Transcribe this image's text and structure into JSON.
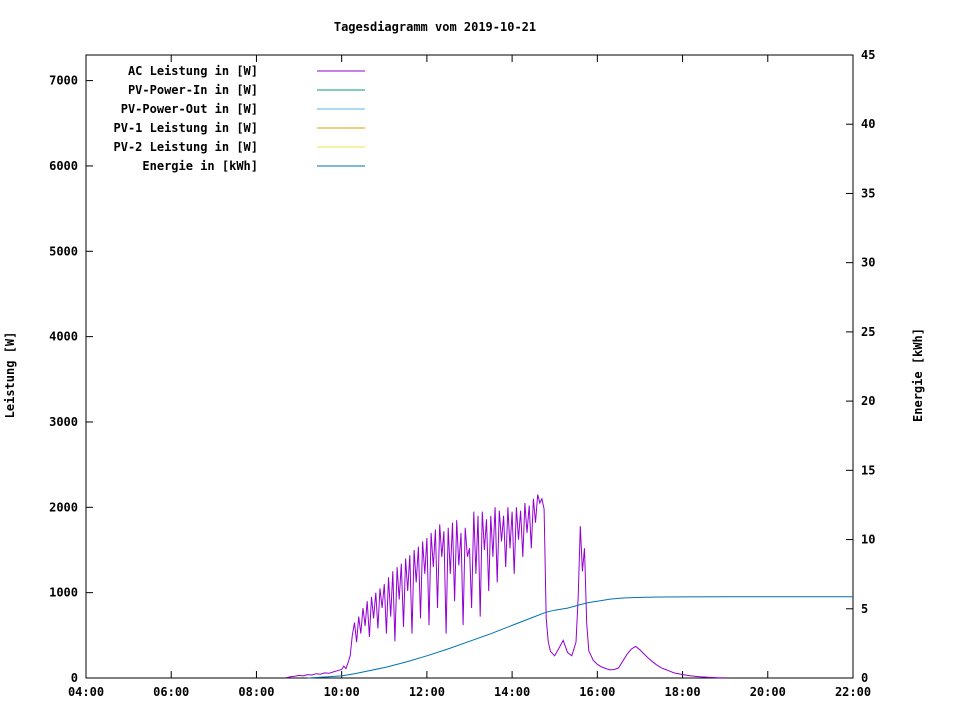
{
  "chart_data": {
    "type": "line",
    "title": "Tagesdiagramm vom 2019-10-21",
    "x_axis": {
      "label": "",
      "range_hours": [
        4,
        22
      ],
      "tick_hours": [
        4,
        6,
        8,
        10,
        12,
        14,
        16,
        18,
        20,
        22
      ],
      "tick_labels": [
        "04:00",
        "06:00",
        "08:00",
        "10:00",
        "12:00",
        "14:00",
        "16:00",
        "18:00",
        "20:00",
        "22:00"
      ]
    },
    "y_left": {
      "label": "Leistung [W]",
      "range": [
        0,
        7300
      ],
      "ticks": [
        0,
        1000,
        2000,
        3000,
        4000,
        5000,
        6000,
        7000
      ]
    },
    "y_right": {
      "label": "Energie [kWh]",
      "range": [
        0,
        45
      ],
      "ticks": [
        0,
        5,
        10,
        15,
        20,
        25,
        30,
        35,
        40,
        45
      ]
    },
    "legend": [
      {
        "label": "AC Leistung in [W]",
        "color": "#9400d3"
      },
      {
        "label": "PV-Power-In in [W]",
        "color": "#009e73"
      },
      {
        "label": "PV-Power-Out in [W]",
        "color": "#56b4e9"
      },
      {
        "label": "PV-1 Leistung in [W]",
        "color": "#e69f00"
      },
      {
        "label": "PV-2 Leistung in [W]",
        "color": "#f0e442"
      },
      {
        "label": "Energie in [kWh]",
        "color": "#0072b2"
      }
    ],
    "series": [
      {
        "name": "AC Leistung in [W]",
        "color": "#9400d3",
        "axis": "left",
        "points": [
          [
            8.7,
            5
          ],
          [
            8.8,
            15
          ],
          [
            8.9,
            20
          ],
          [
            9.0,
            30
          ],
          [
            9.1,
            25
          ],
          [
            9.2,
            40
          ],
          [
            9.3,
            35
          ],
          [
            9.4,
            50
          ],
          [
            9.5,
            45
          ],
          [
            9.6,
            60
          ],
          [
            9.7,
            55
          ],
          [
            9.8,
            70
          ],
          [
            9.9,
            85
          ],
          [
            10.0,
            100
          ],
          [
            10.05,
            140
          ],
          [
            10.1,
            110
          ],
          [
            10.15,
            180
          ],
          [
            10.2,
            260
          ],
          [
            10.25,
            500
          ],
          [
            10.3,
            650
          ],
          [
            10.35,
            420
          ],
          [
            10.4,
            720
          ],
          [
            10.45,
            520
          ],
          [
            10.5,
            820
          ],
          [
            10.55,
            610
          ],
          [
            10.6,
            900
          ],
          [
            10.65,
            480
          ],
          [
            10.7,
            950
          ],
          [
            10.75,
            700
          ],
          [
            10.8,
            1000
          ],
          [
            10.85,
            580
          ],
          [
            10.9,
            1050
          ],
          [
            10.95,
            820
          ],
          [
            11.0,
            1100
          ],
          [
            11.05,
            520
          ],
          [
            11.1,
            1180
          ],
          [
            11.15,
            720
          ],
          [
            11.2,
            1250
          ],
          [
            11.25,
            430
          ],
          [
            11.3,
            1300
          ],
          [
            11.35,
            920
          ],
          [
            11.4,
            1340
          ],
          [
            11.45,
            600
          ],
          [
            11.5,
            1400
          ],
          [
            11.55,
            1020
          ],
          [
            11.6,
            1440
          ],
          [
            11.65,
            520
          ],
          [
            11.7,
            1500
          ],
          [
            11.75,
            1120
          ],
          [
            11.8,
            1540
          ],
          [
            11.85,
            700
          ],
          [
            11.9,
            1600
          ],
          [
            11.95,
            1220
          ],
          [
            12.0,
            1640
          ],
          [
            12.05,
            620
          ],
          [
            12.1,
            1700
          ],
          [
            12.15,
            1300
          ],
          [
            12.2,
            1740
          ],
          [
            12.25,
            820
          ],
          [
            12.3,
            1800
          ],
          [
            12.35,
            1420
          ],
          [
            12.4,
            1720
          ],
          [
            12.45,
            520
          ],
          [
            12.5,
            1760
          ],
          [
            12.55,
            1220
          ],
          [
            12.6,
            1820
          ],
          [
            12.65,
            900
          ],
          [
            12.7,
            1850
          ],
          [
            12.75,
            1320
          ],
          [
            12.8,
            1700
          ],
          [
            12.85,
            620
          ],
          [
            12.9,
            1760
          ],
          [
            12.95,
            1420
          ],
          [
            13.0,
            1520
          ],
          [
            13.05,
            820
          ],
          [
            13.1,
            1950
          ],
          [
            13.15,
            1220
          ],
          [
            13.2,
            1900
          ],
          [
            13.25,
            720
          ],
          [
            13.3,
            1950
          ],
          [
            13.35,
            1500
          ],
          [
            13.4,
            1860
          ],
          [
            13.45,
            1020
          ],
          [
            13.5,
            1900
          ],
          [
            13.55,
            1420
          ],
          [
            13.6,
            2000
          ],
          [
            13.65,
            1120
          ],
          [
            13.7,
            1960
          ],
          [
            13.75,
            1600
          ],
          [
            13.8,
            1900
          ],
          [
            13.85,
            1300
          ],
          [
            13.9,
            2000
          ],
          [
            13.95,
            1520
          ],
          [
            14.0,
            1950
          ],
          [
            14.05,
            1220
          ],
          [
            14.1,
            2000
          ],
          [
            14.15,
            1620
          ],
          [
            14.2,
            1960
          ],
          [
            14.25,
            1420
          ],
          [
            14.3,
            2050
          ],
          [
            14.35,
            1700
          ],
          [
            14.4,
            2020
          ],
          [
            14.45,
            1520
          ],
          [
            14.5,
            2100
          ],
          [
            14.55,
            1820
          ],
          [
            14.6,
            2150
          ],
          [
            14.65,
            2050
          ],
          [
            14.7,
            2100
          ],
          [
            14.75,
            1980
          ],
          [
            14.8,
            700
          ],
          [
            14.85,
            420
          ],
          [
            14.9,
            310
          ],
          [
            15.0,
            260
          ],
          [
            15.1,
            350
          ],
          [
            15.2,
            440
          ],
          [
            15.3,
            300
          ],
          [
            15.4,
            260
          ],
          [
            15.5,
            420
          ],
          [
            15.55,
            950
          ],
          [
            15.6,
            1780
          ],
          [
            15.65,
            1250
          ],
          [
            15.7,
            1520
          ],
          [
            15.75,
            640
          ],
          [
            15.8,
            320
          ],
          [
            15.9,
            210
          ],
          [
            16.0,
            160
          ],
          [
            16.1,
            130
          ],
          [
            16.2,
            110
          ],
          [
            16.3,
            95
          ],
          [
            16.4,
            100
          ],
          [
            16.5,
            120
          ],
          [
            16.6,
            200
          ],
          [
            16.7,
            280
          ],
          [
            16.8,
            340
          ],
          [
            16.9,
            370
          ],
          [
            17.0,
            330
          ],
          [
            17.1,
            280
          ],
          [
            17.2,
            230
          ],
          [
            17.3,
            190
          ],
          [
            17.4,
            150
          ],
          [
            17.5,
            120
          ],
          [
            17.6,
            100
          ],
          [
            17.7,
            80
          ],
          [
            17.8,
            60
          ],
          [
            17.9,
            50
          ],
          [
            18.0,
            40
          ],
          [
            18.2,
            25
          ],
          [
            18.4,
            15
          ],
          [
            18.6,
            8
          ],
          [
            18.8,
            5
          ],
          [
            19.0,
            3
          ]
        ]
      },
      {
        "name": "PV-Power-In in [W]",
        "color": "#009e73",
        "axis": "left",
        "points": []
      },
      {
        "name": "PV-Power-Out in [W]",
        "color": "#56b4e9",
        "axis": "left",
        "points": []
      },
      {
        "name": "PV-1 Leistung in [W]",
        "color": "#e69f00",
        "axis": "left",
        "points": []
      },
      {
        "name": "PV-2 Leistung in [W]",
        "color": "#f0e442",
        "axis": "left",
        "points": []
      },
      {
        "name": "Energie in [kWh]",
        "color": "#0072b2",
        "axis": "right",
        "points": [
          [
            9.2,
            0.0
          ],
          [
            9.5,
            0.05
          ],
          [
            10.0,
            0.15
          ],
          [
            10.3,
            0.3
          ],
          [
            10.6,
            0.5
          ],
          [
            11.0,
            0.75
          ],
          [
            11.5,
            1.15
          ],
          [
            12.0,
            1.6
          ],
          [
            12.5,
            2.1
          ],
          [
            13.0,
            2.65
          ],
          [
            13.5,
            3.2
          ],
          [
            14.0,
            3.8
          ],
          [
            14.5,
            4.4
          ],
          [
            14.8,
            4.75
          ],
          [
            15.0,
            4.9
          ],
          [
            15.3,
            5.05
          ],
          [
            15.6,
            5.3
          ],
          [
            15.8,
            5.45
          ],
          [
            16.0,
            5.55
          ],
          [
            16.3,
            5.7
          ],
          [
            16.6,
            5.78
          ],
          [
            17.0,
            5.82
          ],
          [
            17.5,
            5.85
          ],
          [
            18.0,
            5.86
          ],
          [
            19.0,
            5.87
          ],
          [
            20.0,
            5.87
          ],
          [
            21.0,
            5.87
          ],
          [
            22.0,
            5.87
          ]
        ]
      }
    ]
  }
}
